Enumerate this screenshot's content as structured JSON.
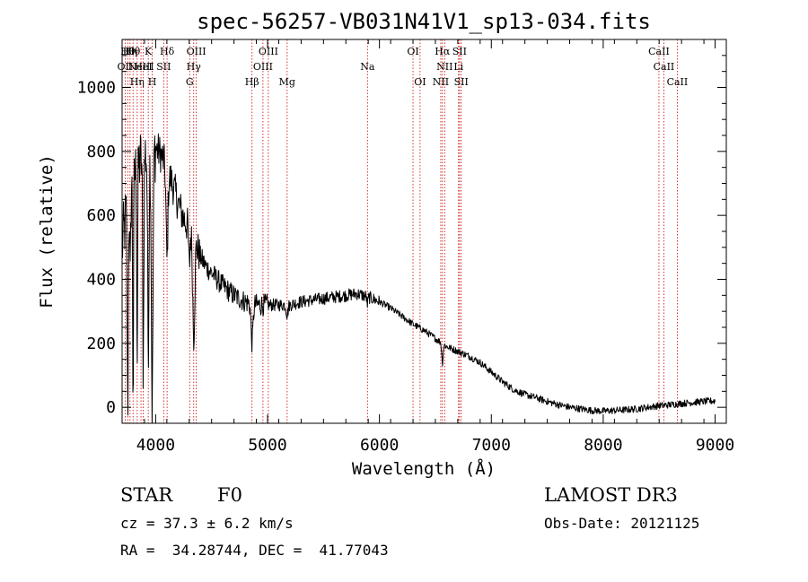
{
  "chart_data": {
    "type": "line",
    "title": "spec-56257-VB031N41V1_sp13-034.fits",
    "xlabel": "Wavelength (Å)",
    "ylabel": "Flux (relative)",
    "xlim": [
      3700,
      9100
    ],
    "ylim": [
      -50,
      1150
    ],
    "xticks": [
      4000,
      5000,
      6000,
      7000,
      8000,
      9000
    ],
    "yticks": [
      0,
      200,
      400,
      600,
      800,
      1000
    ],
    "line_color": "#000000",
    "marker_color": "#cc0000",
    "continuum": {
      "x": [
        3700,
        3750,
        3800,
        3850,
        3900,
        3950,
        4000,
        4050,
        4100,
        4150,
        4200,
        4250,
        4300,
        4350,
        4400,
        4450,
        4500,
        4600,
        4700,
        4800,
        4900,
        5000,
        5100,
        5200,
        5300,
        5400,
        5500,
        5600,
        5700,
        5800,
        5900,
        6000,
        6100,
        6200,
        6300,
        6400,
        6500,
        6600,
        6700,
        6800,
        6900,
        7000,
        7100,
        7200,
        7300,
        7400,
        7500,
        7600,
        7700,
        7800,
        7900,
        8000,
        8100,
        8200,
        8300,
        8400,
        8500,
        8600,
        8700,
        8800,
        8900,
        9000
      ],
      "y": [
        500,
        640,
        720,
        760,
        790,
        800,
        810,
        790,
        740,
        700,
        640,
        590,
        560,
        520,
        470,
        440,
        420,
        380,
        350,
        330,
        320,
        320,
        320,
        320,
        330,
        335,
        340,
        345,
        350,
        355,
        345,
        330,
        310,
        285,
        260,
        240,
        215,
        190,
        175,
        160,
        140,
        110,
        80,
        55,
        40,
        30,
        18,
        8,
        0,
        -5,
        -10,
        -12,
        -10,
        -8,
        -5,
        0,
        5,
        8,
        12,
        15,
        18,
        20
      ]
    },
    "absorption": [
      {
        "wl": 3750,
        "depth": 650,
        "width": 5
      },
      {
        "wl": 3772,
        "depth": 300,
        "width": 4
      },
      {
        "wl": 3798,
        "depth": 700,
        "width": 4
      },
      {
        "wl": 3835,
        "depth": 600,
        "width": 4
      },
      {
        "wl": 3889,
        "depth": 650,
        "width": 5
      },
      {
        "wl": 3934,
        "depth": 600,
        "width": 6
      },
      {
        "wl": 3969,
        "depth": 800,
        "width": 7
      },
      {
        "wl": 4101,
        "depth": 280,
        "width": 8
      },
      {
        "wl": 4300,
        "depth": 120,
        "width": 6
      },
      {
        "wl": 4340,
        "depth": 300,
        "width": 9
      },
      {
        "wl": 4861,
        "depth": 120,
        "width": 9
      },
      {
        "wl": 5175,
        "depth": 30,
        "width": 8
      },
      {
        "wl": 5893,
        "depth": 25,
        "width": 5
      },
      {
        "wl": 6563,
        "depth": 60,
        "width": 6
      }
    ],
    "lines": [
      {
        "wl": 3727,
        "label": "OII",
        "row": 2
      },
      {
        "wl": 3750,
        "label": "Hθ",
        "row": 1
      },
      {
        "wl": 3771,
        "label": "Hη",
        "row": 1
      },
      {
        "wl": 3798,
        "label": "Hθ",
        "row": 1
      },
      {
        "wl": 3835,
        "label": "Hη",
        "row": 3
      },
      {
        "wl": 3869,
        "label": "NeIII",
        "row": 2
      },
      {
        "wl": 3889,
        "label": "HeI",
        "row": 2
      },
      {
        "wl": 3934,
        "label": "K",
        "row": 1
      },
      {
        "wl": 3969,
        "label": "H",
        "row": 3
      },
      {
        "wl": 4072,
        "label": "SII",
        "row": 2
      },
      {
        "wl": 4102,
        "label": "Hδ",
        "row": 1
      },
      {
        "wl": 4304,
        "label": "G",
        "row": 3
      },
      {
        "wl": 4340,
        "label": "Hγ",
        "row": 2
      },
      {
        "wl": 4363,
        "label": "OIII",
        "row": 1
      },
      {
        "wl": 4861,
        "label": "Hβ",
        "row": 3
      },
      {
        "wl": 4959,
        "label": "OIII",
        "row": 2
      },
      {
        "wl": 5007,
        "label": "OIII",
        "row": 1
      },
      {
        "wl": 5175,
        "label": "Mg",
        "row": 3
      },
      {
        "wl": 5893,
        "label": "Na",
        "row": 2
      },
      {
        "wl": 6300,
        "label": "OI",
        "row": 1
      },
      {
        "wl": 6363,
        "label": "OI",
        "row": 3
      },
      {
        "wl": 6548,
        "label": "NII",
        "row": 3
      },
      {
        "wl": 6563,
        "label": "Hα",
        "row": 1
      },
      {
        "wl": 6583,
        "label": "NII",
        "row": 2
      },
      {
        "wl": 6707,
        "label": "Li",
        "row": 2
      },
      {
        "wl": 6716,
        "label": "SII",
        "row": 1
      },
      {
        "wl": 6731,
        "label": "SII",
        "row": 3
      },
      {
        "wl": 8498,
        "label": "CaII",
        "row": 1
      },
      {
        "wl": 8542,
        "label": "CaII",
        "row": 2
      },
      {
        "wl": 8662,
        "label": "CaII",
        "row": 3
      }
    ]
  },
  "info": {
    "object_class": "STAR",
    "subclass": "F0",
    "survey": "LAMOST DR3",
    "redshift": "cz = 37.3 ± 6.2 km/s",
    "obs_date": "Obs-Date: 20121125",
    "coords": "RA =  34.28744, DEC =  41.77043"
  }
}
